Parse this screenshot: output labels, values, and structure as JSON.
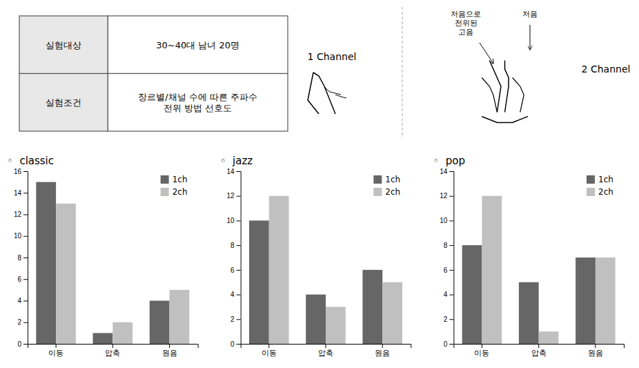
{
  "chart_data": [
    {
      "type": "bar",
      "title": "◦  classic",
      "categories": [
        "이동",
        "압축",
        "원음"
      ],
      "series": [
        {
          "name": "1ch",
          "color": "#666666",
          "values": [
            15,
            1,
            4
          ]
        },
        {
          "name": "2ch",
          "color": "#c0c0c0",
          "values": [
            13,
            2,
            5
          ]
        }
      ],
      "ylim": [
        0,
        16
      ],
      "yticks": [
        0,
        2,
        4,
        6,
        8,
        10,
        12,
        14,
        16
      ],
      "legend": "upper right"
    },
    {
      "type": "bar",
      "title": "◦  jazz",
      "categories": [
        "이동",
        "압축",
        "원음"
      ],
      "series": [
        {
          "name": "1ch",
          "color": "#666666",
          "values": [
            10,
            4,
            6
          ]
        },
        {
          "name": "2ch",
          "color": "#c0c0c0",
          "values": [
            12,
            3,
            5
          ]
        }
      ],
      "ylim": [
        0,
        14
      ],
      "yticks": [
        0,
        2,
        4,
        6,
        8,
        10,
        12,
        14
      ],
      "legend": "upper right"
    },
    {
      "type": "bar",
      "title": "◦  pop",
      "categories": [
        "이동",
        "압축",
        "원음"
      ],
      "series": [
        {
          "name": "1ch",
          "color": "#666666",
          "values": [
            8,
            5,
            7
          ]
        },
        {
          "name": "2ch",
          "color": "#c0c0c0",
          "values": [
            12,
            1,
            7
          ]
        }
      ],
      "ylim": [
        0,
        14
      ],
      "yticks": [
        0,
        2,
        4,
        6,
        8,
        10,
        12,
        14
      ],
      "legend": "upper right"
    }
  ],
  "annotations": [
    "실험대상",
    "30~40대 남녀 20명",
    "실험조건",
    "장르별/채널 수에 따른 주파수\n전위 방법 선호도",
    "1 Channel",
    "2 Channel",
    "저음으로\n전위된\n고음",
    "저음"
  ]
}
